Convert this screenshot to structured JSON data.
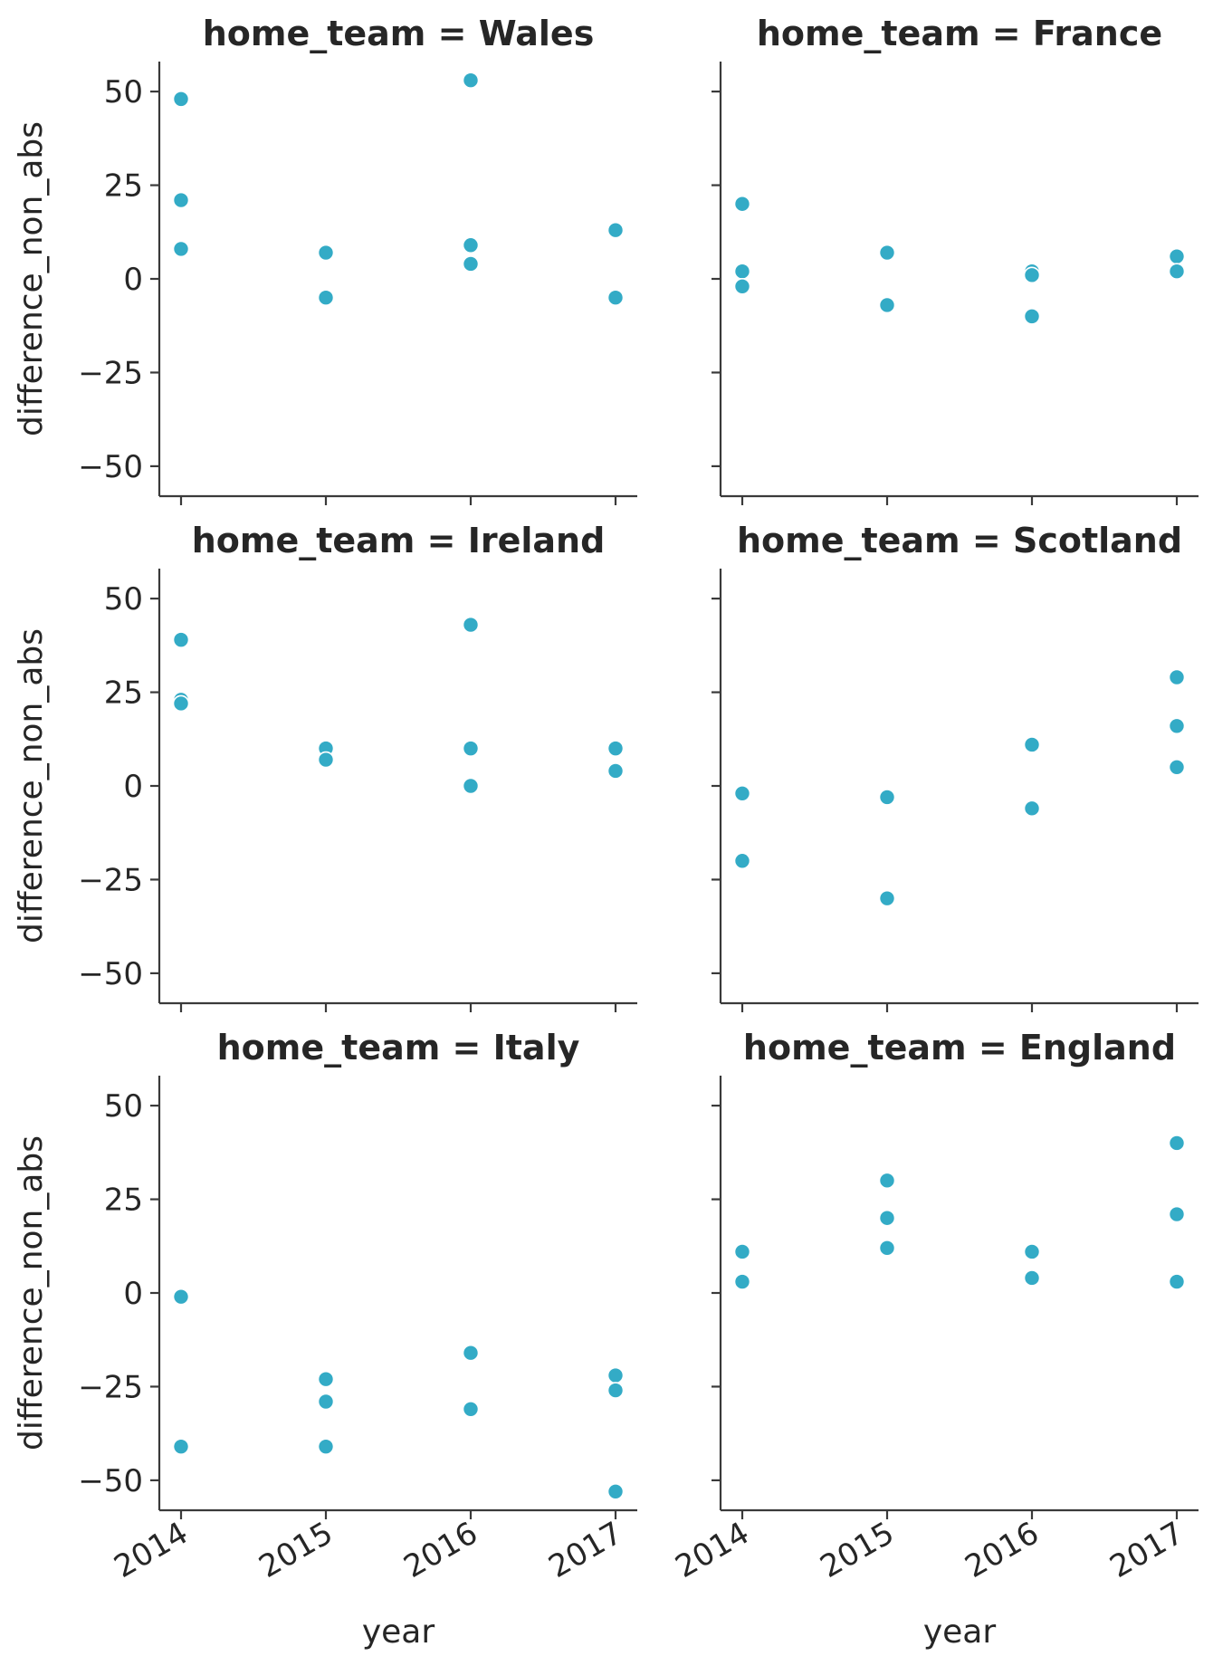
{
  "chart_data": {
    "type": "scatter",
    "facet_variable": "home_team",
    "x_label": "year",
    "y_label": "difference_non_abs",
    "x_ticks": [
      2014,
      2015,
      2016,
      2017
    ],
    "y_ticks": [
      -50,
      -25,
      0,
      25,
      50
    ],
    "y_tick_labels": [
      "−50",
      "−25",
      "0",
      "25",
      "50"
    ],
    "ylim": [
      -58,
      58
    ],
    "xlim": [
      2013.85,
      2017.15
    ],
    "grid": false,
    "point_color": "#33abc6",
    "panels": [
      {
        "title": "home_team = Wales",
        "points": [
          {
            "x": 2014,
            "y": 48
          },
          {
            "x": 2014,
            "y": 21
          },
          {
            "x": 2014,
            "y": 8
          },
          {
            "x": 2015,
            "y": 7
          },
          {
            "x": 2015,
            "y": -5
          },
          {
            "x": 2016,
            "y": 53
          },
          {
            "x": 2016,
            "y": 9
          },
          {
            "x": 2016,
            "y": 4
          },
          {
            "x": 2017,
            "y": 13
          },
          {
            "x": 2017,
            "y": -5
          }
        ]
      },
      {
        "title": "home_team = France",
        "points": [
          {
            "x": 2014,
            "y": 20
          },
          {
            "x": 2014,
            "y": 2
          },
          {
            "x": 2014,
            "y": -2
          },
          {
            "x": 2015,
            "y": 7
          },
          {
            "x": 2015,
            "y": -7
          },
          {
            "x": 2016,
            "y": 2
          },
          {
            "x": 2016,
            "y": 1
          },
          {
            "x": 2016,
            "y": -10
          },
          {
            "x": 2017,
            "y": 6
          },
          {
            "x": 2017,
            "y": 2
          }
        ]
      },
      {
        "title": "home_team = Ireland",
        "points": [
          {
            "x": 2014,
            "y": 39
          },
          {
            "x": 2014,
            "y": 23
          },
          {
            "x": 2014,
            "y": 22
          },
          {
            "x": 2015,
            "y": 10
          },
          {
            "x": 2015,
            "y": 7
          },
          {
            "x": 2016,
            "y": 43
          },
          {
            "x": 2016,
            "y": 10
          },
          {
            "x": 2016,
            "y": 0
          },
          {
            "x": 2017,
            "y": 10
          },
          {
            "x": 2017,
            "y": 4
          }
        ]
      },
      {
        "title": "home_team = Scotland",
        "points": [
          {
            "x": 2014,
            "y": -2
          },
          {
            "x": 2014,
            "y": -20
          },
          {
            "x": 2015,
            "y": -3
          },
          {
            "x": 2015,
            "y": -30
          },
          {
            "x": 2016,
            "y": 11
          },
          {
            "x": 2016,
            "y": -6
          },
          {
            "x": 2017,
            "y": 29
          },
          {
            "x": 2017,
            "y": 16
          },
          {
            "x": 2017,
            "y": 5
          }
        ]
      },
      {
        "title": "home_team = Italy",
        "points": [
          {
            "x": 2014,
            "y": -1
          },
          {
            "x": 2014,
            "y": -41
          },
          {
            "x": 2015,
            "y": -23
          },
          {
            "x": 2015,
            "y": -29
          },
          {
            "x": 2015,
            "y": -41
          },
          {
            "x": 2016,
            "y": -16
          },
          {
            "x": 2016,
            "y": -31
          },
          {
            "x": 2017,
            "y": -22
          },
          {
            "x": 2017,
            "y": -26
          },
          {
            "x": 2017,
            "y": -53
          }
        ]
      },
      {
        "title": "home_team = England",
        "points": [
          {
            "x": 2014,
            "y": 11
          },
          {
            "x": 2014,
            "y": 3
          },
          {
            "x": 2015,
            "y": 30
          },
          {
            "x": 2015,
            "y": 20
          },
          {
            "x": 2015,
            "y": 12
          },
          {
            "x": 2016,
            "y": 11
          },
          {
            "x": 2016,
            "y": 4
          },
          {
            "x": 2017,
            "y": 40
          },
          {
            "x": 2017,
            "y": 21
          },
          {
            "x": 2017,
            "y": 3
          }
        ]
      }
    ]
  }
}
